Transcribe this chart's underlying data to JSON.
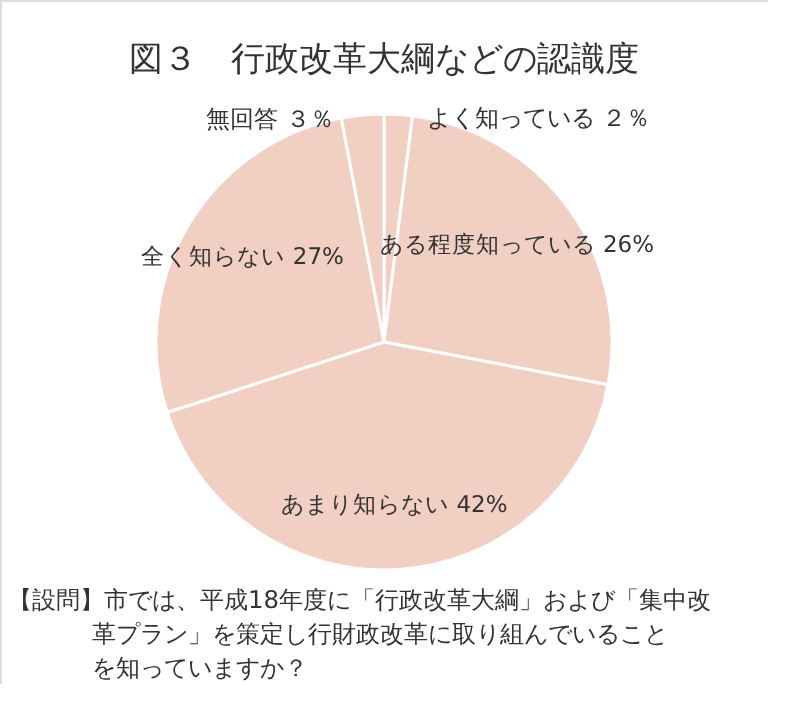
{
  "chart_data": {
    "type": "pie",
    "title": "図３　行政改革大綱などの認識度",
    "categories": [
      "よく知っている",
      "ある程度知っている",
      "あまり知らない",
      "全く知らない",
      "無回答"
    ],
    "values": [
      2,
      26,
      42,
      27,
      3
    ],
    "value_labels": [
      "２％",
      "26%",
      "42%",
      "27%",
      "３％"
    ],
    "colors": [
      "#f2cfc3",
      "#f2cfc3",
      "#f2cfc3",
      "#f2cfc3",
      "#f2cfc3"
    ],
    "annotations": [
      "【設問】市では、平成18年度に「行政改革大綱」および「集中改革プラン」を策定し行財政改革に取り組んでいることを知っていますか？"
    ]
  }
}
